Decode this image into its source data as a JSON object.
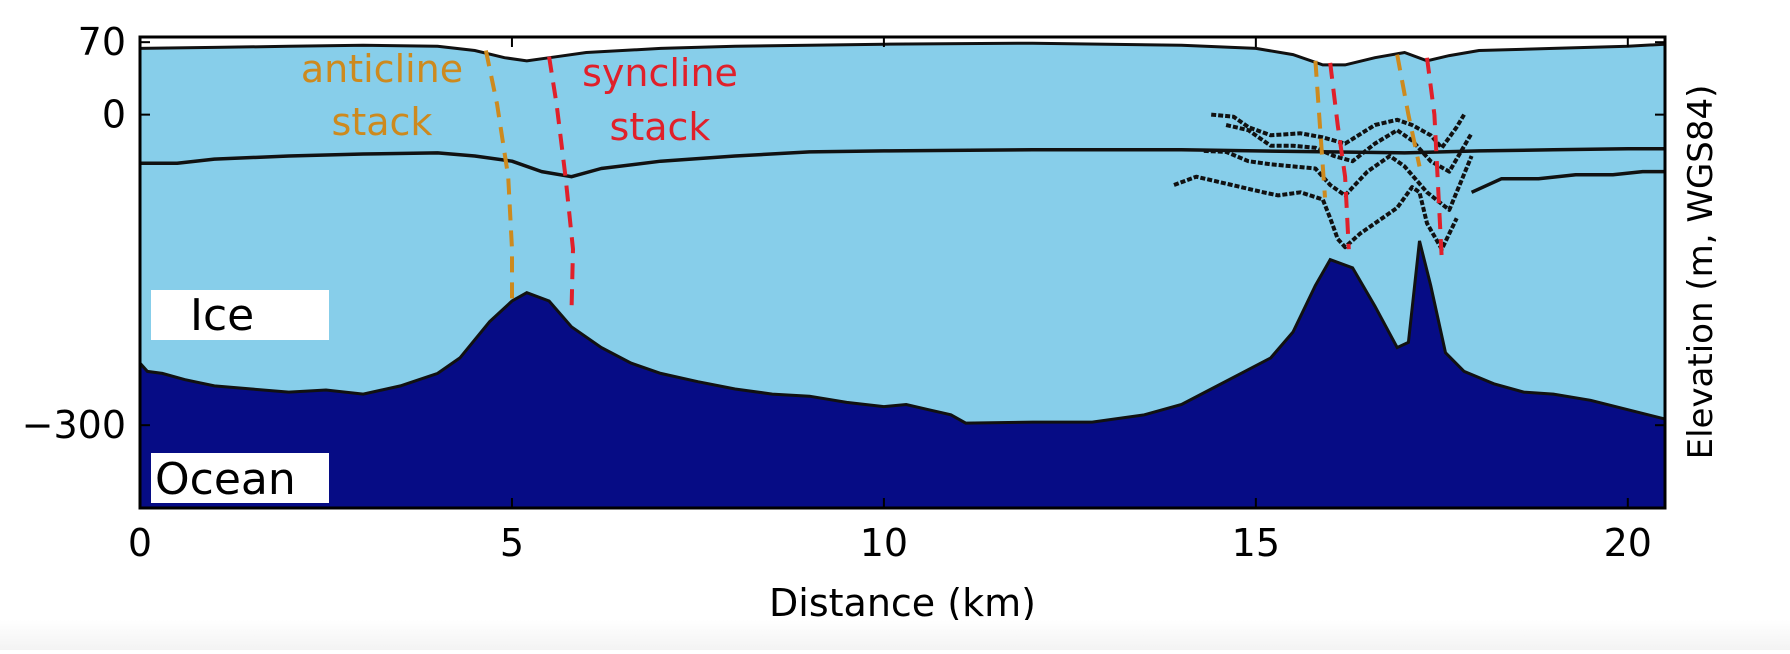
{
  "chart_data": {
    "type": "area",
    "xlabel": "Distance (km)",
    "ylabel": "Elevation (m, WGS84)",
    "xlim": [
      0,
      20.5
    ],
    "ylim": [
      -380,
      75
    ],
    "x_ticks": [
      0,
      5,
      10,
      15,
      20
    ],
    "x_tick_labels": [
      "0",
      "5",
      "10",
      "15",
      "20"
    ],
    "y_ticks": [
      70,
      0,
      -300
    ],
    "y_tick_labels": [
      "70",
      "0",
      "−300"
    ],
    "grid": false,
    "colors": {
      "ice": "#87ceea",
      "ocean": "#060c85",
      "line": "#111111",
      "anticline": "#cd8a1e",
      "syncline": "#e0202a"
    },
    "region_labels": {
      "ice": "Ice",
      "ocean": "Ocean"
    },
    "annotations": {
      "anticline_line1": "anticline",
      "anticline_line2": "stack",
      "syncline_line1": "syncline",
      "syncline_line2": "stack"
    },
    "series": [
      {
        "role": "ice-surface",
        "x": [
          0,
          1,
          2,
          3,
          4,
          4.5,
          4.9,
          5.2,
          5.6,
          6,
          7,
          8,
          10,
          12,
          14,
          15,
          15.5,
          15.9,
          16.2,
          16.6,
          17.0,
          17.3,
          17.6,
          18,
          19,
          20,
          20.5
        ],
        "y": [
          64,
          65,
          66,
          67,
          66,
          62,
          55,
          52,
          56,
          60,
          64,
          66,
          68,
          69,
          67,
          64,
          58,
          48,
          48,
          55,
          60,
          52,
          57,
          62,
          64,
          66,
          68
        ]
      },
      {
        "role": "bed",
        "x": [
          0,
          0.1,
          0.3,
          0.6,
          1,
          1.5,
          2,
          2.5,
          3,
          3.5,
          4,
          4.3,
          4.7,
          5,
          5.2,
          5.5,
          5.8,
          6.2,
          6.6,
          7,
          7.5,
          8,
          8.5,
          9,
          9.5,
          10,
          10.3,
          10.6,
          10.9,
          11.1,
          12,
          12.8,
          13.5,
          14,
          14.4,
          14.8,
          15.2,
          15.5,
          15.8,
          16,
          16.3,
          16.6,
          16.9,
          17.05,
          17.2,
          17.35,
          17.55,
          17.8,
          18.2,
          18.6,
          19,
          19.5,
          20,
          20.5
        ],
        "y": [
          -240,
          -248,
          -250,
          -256,
          -262,
          -265,
          -268,
          -266,
          -270,
          -262,
          -250,
          -235,
          -200,
          -180,
          -172,
          -180,
          -205,
          -225,
          -240,
          -250,
          -258,
          -265,
          -270,
          -272,
          -278,
          -282,
          -280,
          -285,
          -290,
          -298,
          -297,
          -297,
          -290,
          -280,
          -265,
          -250,
          -235,
          -210,
          -165,
          -140,
          -148,
          -185,
          -225,
          -220,
          -122,
          -165,
          -230,
          -248,
          -260,
          -268,
          -270,
          -276,
          -285,
          -294
        ]
      },
      {
        "role": "internal-layer-upper",
        "x": [
          0,
          0.5,
          1,
          2,
          3,
          4,
          4.5,
          5,
          5.4,
          5.8,
          6.2,
          7,
          8,
          9,
          10,
          12,
          14,
          15,
          16,
          17,
          18,
          19,
          20,
          20.5
        ],
        "y": [
          -47,
          -47,
          -43,
          -40,
          -38,
          -37,
          -40,
          -45,
          -55,
          -60,
          -52,
          -45,
          -40,
          -36,
          -35,
          -34,
          -34,
          -35,
          -36,
          -37,
          -35,
          -34,
          -33,
          -33
        ]
      },
      {
        "role": "internal-layer-lower",
        "x": [
          17.9,
          18.3,
          18.8,
          19.3,
          19.8,
          20.2,
          20.5
        ],
        "y": [
          -75,
          -62,
          -62,
          -58,
          -58,
          -55,
          -55
        ]
      },
      {
        "role": "layer-15km-1",
        "x": [
          14.4,
          14.7,
          14.9,
          15.2,
          15.6,
          15.9,
          16.2,
          16.6,
          16.9,
          17.1,
          17.35,
          17.5,
          17.7,
          17.8
        ],
        "y": [
          0,
          -2,
          -12,
          -20,
          -18,
          -22,
          -28,
          -10,
          -5,
          -10,
          -20,
          -32,
          -12,
          0
        ]
      },
      {
        "role": "layer-15km-2",
        "x": [
          14.6,
          14.9,
          15.2,
          15.5,
          15.8,
          16.05,
          16.3,
          16.6,
          16.9,
          17.1,
          17.35,
          17.6,
          17.9
        ],
        "y": [
          -10,
          -15,
          -30,
          -30,
          -32,
          -40,
          -45,
          -28,
          -15,
          -25,
          -45,
          -55,
          -18
        ]
      },
      {
        "role": "layer-15km-3",
        "x": [
          14.3,
          14.6,
          14.9,
          15.2,
          15.5,
          15.8,
          16.0,
          16.2,
          16.5,
          16.8,
          17.0,
          17.3,
          17.6,
          17.9
        ],
        "y": [
          -35,
          -36,
          -45,
          -48,
          -50,
          -52,
          -68,
          -78,
          -55,
          -40,
          -50,
          -75,
          -92,
          -40
        ]
      },
      {
        "role": "layer-15km-4",
        "x": [
          13.9,
          14.2,
          14.5,
          14.8,
          15.1,
          15.3,
          15.6,
          15.9,
          16.0,
          16.1,
          16.2,
          16.4,
          16.7,
          16.9,
          17.0,
          17.1,
          17.2,
          17.3,
          17.5,
          17.7
        ],
        "y": [
          -68,
          -60,
          -65,
          -70,
          -75,
          -78,
          -75,
          -82,
          -100,
          -120,
          -128,
          -115,
          -100,
          -90,
          -80,
          -70,
          -75,
          -105,
          -130,
          -100
        ]
      },
      {
        "role": "anticline-trace-1",
        "x": [
          4.65,
          4.8,
          4.95,
          5.0,
          5.0
        ],
        "y": [
          62,
          10,
          -60,
          -130,
          -185
        ]
      },
      {
        "role": "syncline-trace-1",
        "x": [
          5.5,
          5.6,
          5.72,
          5.82,
          5.8
        ],
        "y": [
          56,
          10,
          -60,
          -130,
          -190
        ]
      },
      {
        "role": "anticline-trace-2",
        "x": [
          15.8,
          15.87,
          15.93
        ],
        "y": [
          52,
          -20,
          -80
        ]
      },
      {
        "role": "syncline-trace-2",
        "x": [
          16.0,
          16.1,
          16.2,
          16.25
        ],
        "y": [
          50,
          -10,
          -60,
          -130
        ]
      },
      {
        "role": "anticline-trace-3",
        "x": [
          16.9,
          17.05,
          17.2
        ],
        "y": [
          58,
          0,
          -50
        ]
      },
      {
        "role": "syncline-trace-3",
        "x": [
          17.3,
          17.4,
          17.5
        ],
        "y": [
          55,
          0,
          -140
        ]
      }
    ]
  }
}
